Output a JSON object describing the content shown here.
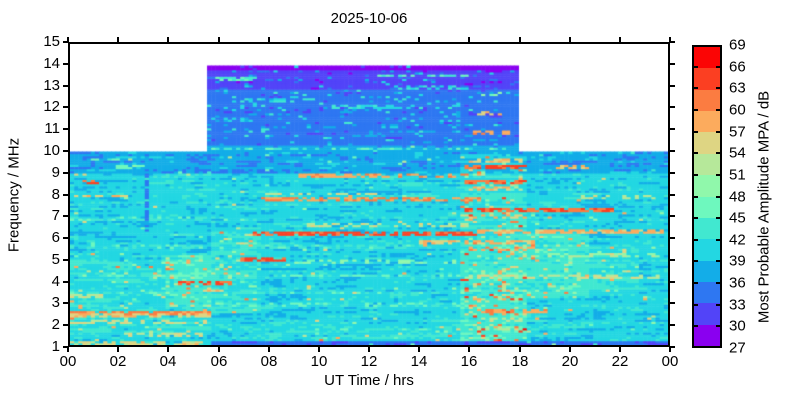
{
  "chart_data": {
    "type": "heatmap",
    "title": "2025-10-06",
    "xlabel": "UT Time / hrs",
    "ylabel": "Frequency / MHz",
    "xlim": [
      0,
      24
    ],
    "ylim": [
      1,
      15
    ],
    "grid": false,
    "xticks": {
      "values": [
        0,
        2,
        4,
        6,
        8,
        10,
        12,
        14,
        16,
        18,
        20,
        22,
        24
      ],
      "labels": [
        "00",
        "02",
        "04",
        "06",
        "08",
        "10",
        "12",
        "14",
        "16",
        "18",
        "20",
        "22",
        "00"
      ]
    },
    "yticks": {
      "values": [
        1,
        2,
        3,
        4,
        5,
        6,
        7,
        8,
        9,
        10,
        11,
        12,
        13,
        14,
        15
      ]
    },
    "colorbar": {
      "label": "Most Probable Amplitude MPA / dB",
      "levels": [
        27,
        30,
        33,
        36,
        39,
        42,
        45,
        48,
        51,
        54,
        57,
        60,
        63,
        66,
        69
      ],
      "tick_labels_top_to_bottom": [
        "69",
        "66",
        "63",
        "60",
        "57",
        "54",
        "51",
        "48",
        "45",
        "42",
        "39",
        "36",
        "33",
        "30",
        "27"
      ],
      "colors_low_to_high": [
        "#8a00f0",
        "#5244f8",
        "#2e77f2",
        "#13ade8",
        "#23d7e2",
        "#41e8d0",
        "#6ef8be",
        "#90f8ab",
        "#b6e89a",
        "#ded583",
        "#fcab5d",
        "#fb7c41",
        "#fb3f22",
        "#fb0505"
      ]
    },
    "coverage": [
      {
        "t": [
          0,
          5.5
        ],
        "f": [
          1,
          10
        ]
      },
      {
        "t": [
          5.5,
          18.05
        ],
        "f": [
          1,
          14
        ]
      },
      {
        "t": [
          18.05,
          24
        ],
        "f": [
          1,
          10
        ]
      }
    ],
    "base_bands": [
      {
        "f": [
          13.8,
          14.01
        ],
        "value": 28.5
      },
      {
        "f": [
          12.9,
          13.8
        ],
        "value": 31.5
      },
      {
        "f": [
          10.3,
          12.9
        ],
        "value": 34.5
      },
      {
        "f": [
          9.0,
          10.3
        ],
        "value": 37.2
      },
      {
        "f": [
          1.0,
          9.0
        ],
        "value": 40.3
      }
    ],
    "enhancement_regions": [
      {
        "t": [
          5.6,
          24
        ],
        "f": [
          1.0,
          1.18
        ],
        "set": 33.5
      },
      {
        "t": [
          0,
          5.6
        ],
        "f": [
          1.5,
          5.2
        ],
        "add": 1.2,
        "speckle": 0.05
      },
      {
        "t": [
          3.8,
          5.6
        ],
        "f": [
          2.8,
          5.2
        ],
        "add": 2.2,
        "speckle": 0.1
      },
      {
        "t": [
          5.6,
          7.6
        ],
        "f": [
          2.5,
          6.5
        ],
        "add": 1.8,
        "speckle": 0.08
      },
      {
        "t": [
          15.7,
          18.3
        ],
        "f": [
          1.2,
          5.8
        ],
        "add": 3.2,
        "speckle": 0.18,
        "amp": [
          5,
          22
        ]
      },
      {
        "t": [
          15.7,
          18.3
        ],
        "f": [
          5.8,
          9.95
        ],
        "add": 1.8,
        "speckle": 0.1,
        "amp": [
          5,
          22
        ]
      },
      {
        "t": [
          18.3,
          20.8
        ],
        "f": [
          3.2,
          6.2
        ],
        "add": 2.8,
        "speckle": 0.12
      },
      {
        "t": [
          20.8,
          22.8
        ],
        "f": [
          3.4,
          5.6
        ],
        "add": 1.8,
        "speckle": 0.08
      },
      {
        "t": [
          0,
          5.6
        ],
        "f": [
          1.0,
          1.2
        ],
        "add": 0.5,
        "speckle": 0.22,
        "amp": [
          8,
          20
        ]
      },
      {
        "t": [
          5.5,
          18.05
        ],
        "f": [
          10.3,
          13.8
        ],
        "speckle": 0.05,
        "amp": [
          4,
          9
        ]
      },
      {
        "t": [
          8,
          16
        ],
        "f": [
          1.2,
          2.2
        ],
        "add": 0.8,
        "speckle": 0.03
      }
    ],
    "streaks": [
      {
        "f": 4.25,
        "t0": 0,
        "t1": 16,
        "v": 45,
        "p": 0.5
      },
      {
        "f": 3.45,
        "t0": 0,
        "t1": 16,
        "v": 44,
        "p": 0.45
      },
      {
        "f": 5.6,
        "t0": 0,
        "t1": 14,
        "v": 44,
        "p": 0.4
      },
      {
        "f": 6.9,
        "t0": 0,
        "t1": 7,
        "v": 44,
        "p": 0.4
      },
      {
        "f": 2.9,
        "t0": 6,
        "t1": 16,
        "v": 45,
        "p": 0.4
      },
      {
        "f": 1.75,
        "t0": 5.5,
        "t1": 15.7,
        "v": 44,
        "p": 0.35
      },
      {
        "f": 9.65,
        "t0": 0.4,
        "t1": 2.1,
        "v": 46,
        "p": 0.6
      },
      {
        "f": 9.3,
        "t0": 1.9,
        "t1": 3.1,
        "v": 47,
        "p": 0.6
      },
      {
        "f": 9.45,
        "t0": 13,
        "t1": 15.8,
        "v": 36,
        "p": 0.5
      },
      {
        "f": 9.45,
        "t0": 21.5,
        "t1": 23.8,
        "v": 36,
        "p": 0.5
      },
      {
        "f": 10.15,
        "t0": 5.5,
        "t1": 18.05,
        "v": 44,
        "p": 0.55
      },
      {
        "f": 13.4,
        "t0": 5.9,
        "t1": 7.7,
        "v": 44,
        "p": 0.7
      },
      {
        "f": 13.55,
        "t0": 12.4,
        "t1": 16.1,
        "v": 45,
        "p": 0.7
      },
      {
        "f": 12.4,
        "t0": 6.8,
        "t1": 9.7,
        "v": 42,
        "p": 0.6
      },
      {
        "f": 11.5,
        "t0": 5.6,
        "t1": 7.1,
        "v": 40,
        "p": 0.5
      },
      {
        "f": 12.1,
        "t0": 10.5,
        "t1": 15.6,
        "v": 41,
        "p": 0.5
      },
      {
        "f": 13.0,
        "t0": 13,
        "t1": 16,
        "v": 42,
        "p": 0.5
      },
      {
        "f": 2.55,
        "t0": 0,
        "t1": 5.7,
        "v": 61,
        "p": 0.9,
        "w": 0.1
      },
      {
        "f": 2.4,
        "t0": 0,
        "t1": 5.6,
        "v": 56,
        "p": 0.7
      },
      {
        "f": 2.1,
        "t0": 0,
        "t1": 5.5,
        "v": 54,
        "p": 0.6
      },
      {
        "f": 1.5,
        "t0": 2.2,
        "t1": 5.3,
        "v": 54,
        "p": 0.5
      },
      {
        "f": 1.1,
        "t0": 0.2,
        "t1": 5.4,
        "v": 55,
        "p": 0.45
      },
      {
        "f": 3.3,
        "t0": 0,
        "t1": 1.3,
        "v": 53,
        "p": 0.7
      },
      {
        "f": 7.95,
        "t0": 0,
        "t1": 2.4,
        "v": 56,
        "p": 0.65
      },
      {
        "f": 8.6,
        "t0": 0.4,
        "t1": 1.1,
        "v": 63,
        "p": 0.8
      },
      {
        "f": 8.9,
        "t0": 0.1,
        "t1": 0.7,
        "v": 56,
        "p": 0.7
      },
      {
        "f": 3.9,
        "t0": 4.4,
        "t1": 6.5,
        "v": 64,
        "p": 0.85,
        "w": 0.1
      },
      {
        "f": 3.55,
        "t0": 4.7,
        "t1": 6.3,
        "v": 56,
        "p": 0.6
      },
      {
        "f": 5.05,
        "t0": 6.9,
        "t1": 8.6,
        "v": 64,
        "p": 0.9,
        "w": 0.1
      },
      {
        "f": 6.25,
        "t0": 7.3,
        "t1": 16.3,
        "v": 64,
        "p": 0.75,
        "w": 0.1
      },
      {
        "f": 7.85,
        "t0": 7.5,
        "t1": 16.5,
        "v": 60,
        "p": 0.7,
        "w": 0.1
      },
      {
        "f": 8.05,
        "t0": 7.6,
        "t1": 12.5,
        "v": 55,
        "p": 0.5
      },
      {
        "f": 8.9,
        "t0": 9.2,
        "t1": 16.2,
        "v": 59,
        "p": 0.55
      },
      {
        "f": 6.6,
        "t0": 9.5,
        "t1": 16,
        "v": 53,
        "p": 0.45
      },
      {
        "f": 4.9,
        "t0": 9,
        "t1": 15.5,
        "v": 49,
        "p": 0.4
      },
      {
        "f": 5.8,
        "t0": 14,
        "t1": 18.6,
        "v": 57,
        "p": 0.6
      },
      {
        "f": 9.35,
        "t0": 15.8,
        "t1": 18.4,
        "v": 63,
        "p": 0.85,
        "w": 0.1
      },
      {
        "f": 9.6,
        "t0": 16,
        "t1": 18.1,
        "v": 56,
        "p": 0.6
      },
      {
        "f": 8.6,
        "t0": 15.9,
        "t1": 18.3,
        "v": 62,
        "p": 0.8
      },
      {
        "f": 8.3,
        "t0": 16,
        "t1": 17.6,
        "v": 57,
        "p": 0.6
      },
      {
        "f": 7.3,
        "t0": 15.8,
        "t1": 21.8,
        "v": 63,
        "p": 0.8,
        "w": 0.1
      },
      {
        "f": 7.0,
        "t0": 16,
        "t1": 18.1,
        "v": 56,
        "p": 0.55
      },
      {
        "f": 6.3,
        "t0": 16.3,
        "t1": 23.9,
        "v": 58,
        "p": 0.7
      },
      {
        "f": 5.5,
        "t0": 16,
        "t1": 18.7,
        "v": 59,
        "p": 0.7
      },
      {
        "f": 4.2,
        "t0": 16,
        "t1": 23.6,
        "v": 54,
        "p": 0.55
      },
      {
        "f": 2.6,
        "t0": 16.3,
        "t1": 19.1,
        "v": 59,
        "p": 0.7
      },
      {
        "f": 2.2,
        "t0": 16.3,
        "t1": 18.1,
        "v": 54,
        "p": 0.5
      },
      {
        "f": 1.8,
        "t0": 16,
        "t1": 17.6,
        "v": 52,
        "p": 0.5
      },
      {
        "f": 9.3,
        "t0": 19.5,
        "t1": 21.1,
        "v": 57,
        "p": 0.6
      },
      {
        "f": 5.2,
        "t0": 18.6,
        "t1": 23.8,
        "v": 51,
        "p": 0.5
      },
      {
        "f": 7.9,
        "t0": 20.5,
        "t1": 23.6,
        "v": 53,
        "p": 0.45
      },
      {
        "f": 10.9,
        "t0": 16.2,
        "t1": 17.7,
        "v": 59,
        "p": 0.7
      },
      {
        "f": 11.8,
        "t0": 16.4,
        "t1": 17.3,
        "v": 56,
        "p": 0.6
      },
      {
        "f": 12.7,
        "t0": 16.5,
        "t1": 17.4,
        "v": 49,
        "p": 0.5
      }
    ],
    "vertical_features": [
      {
        "t": 3.1,
        "f": [
          6.3,
          9.0
        ],
        "value": 35,
        "width": 0.1,
        "p": 0.7
      }
    ]
  }
}
